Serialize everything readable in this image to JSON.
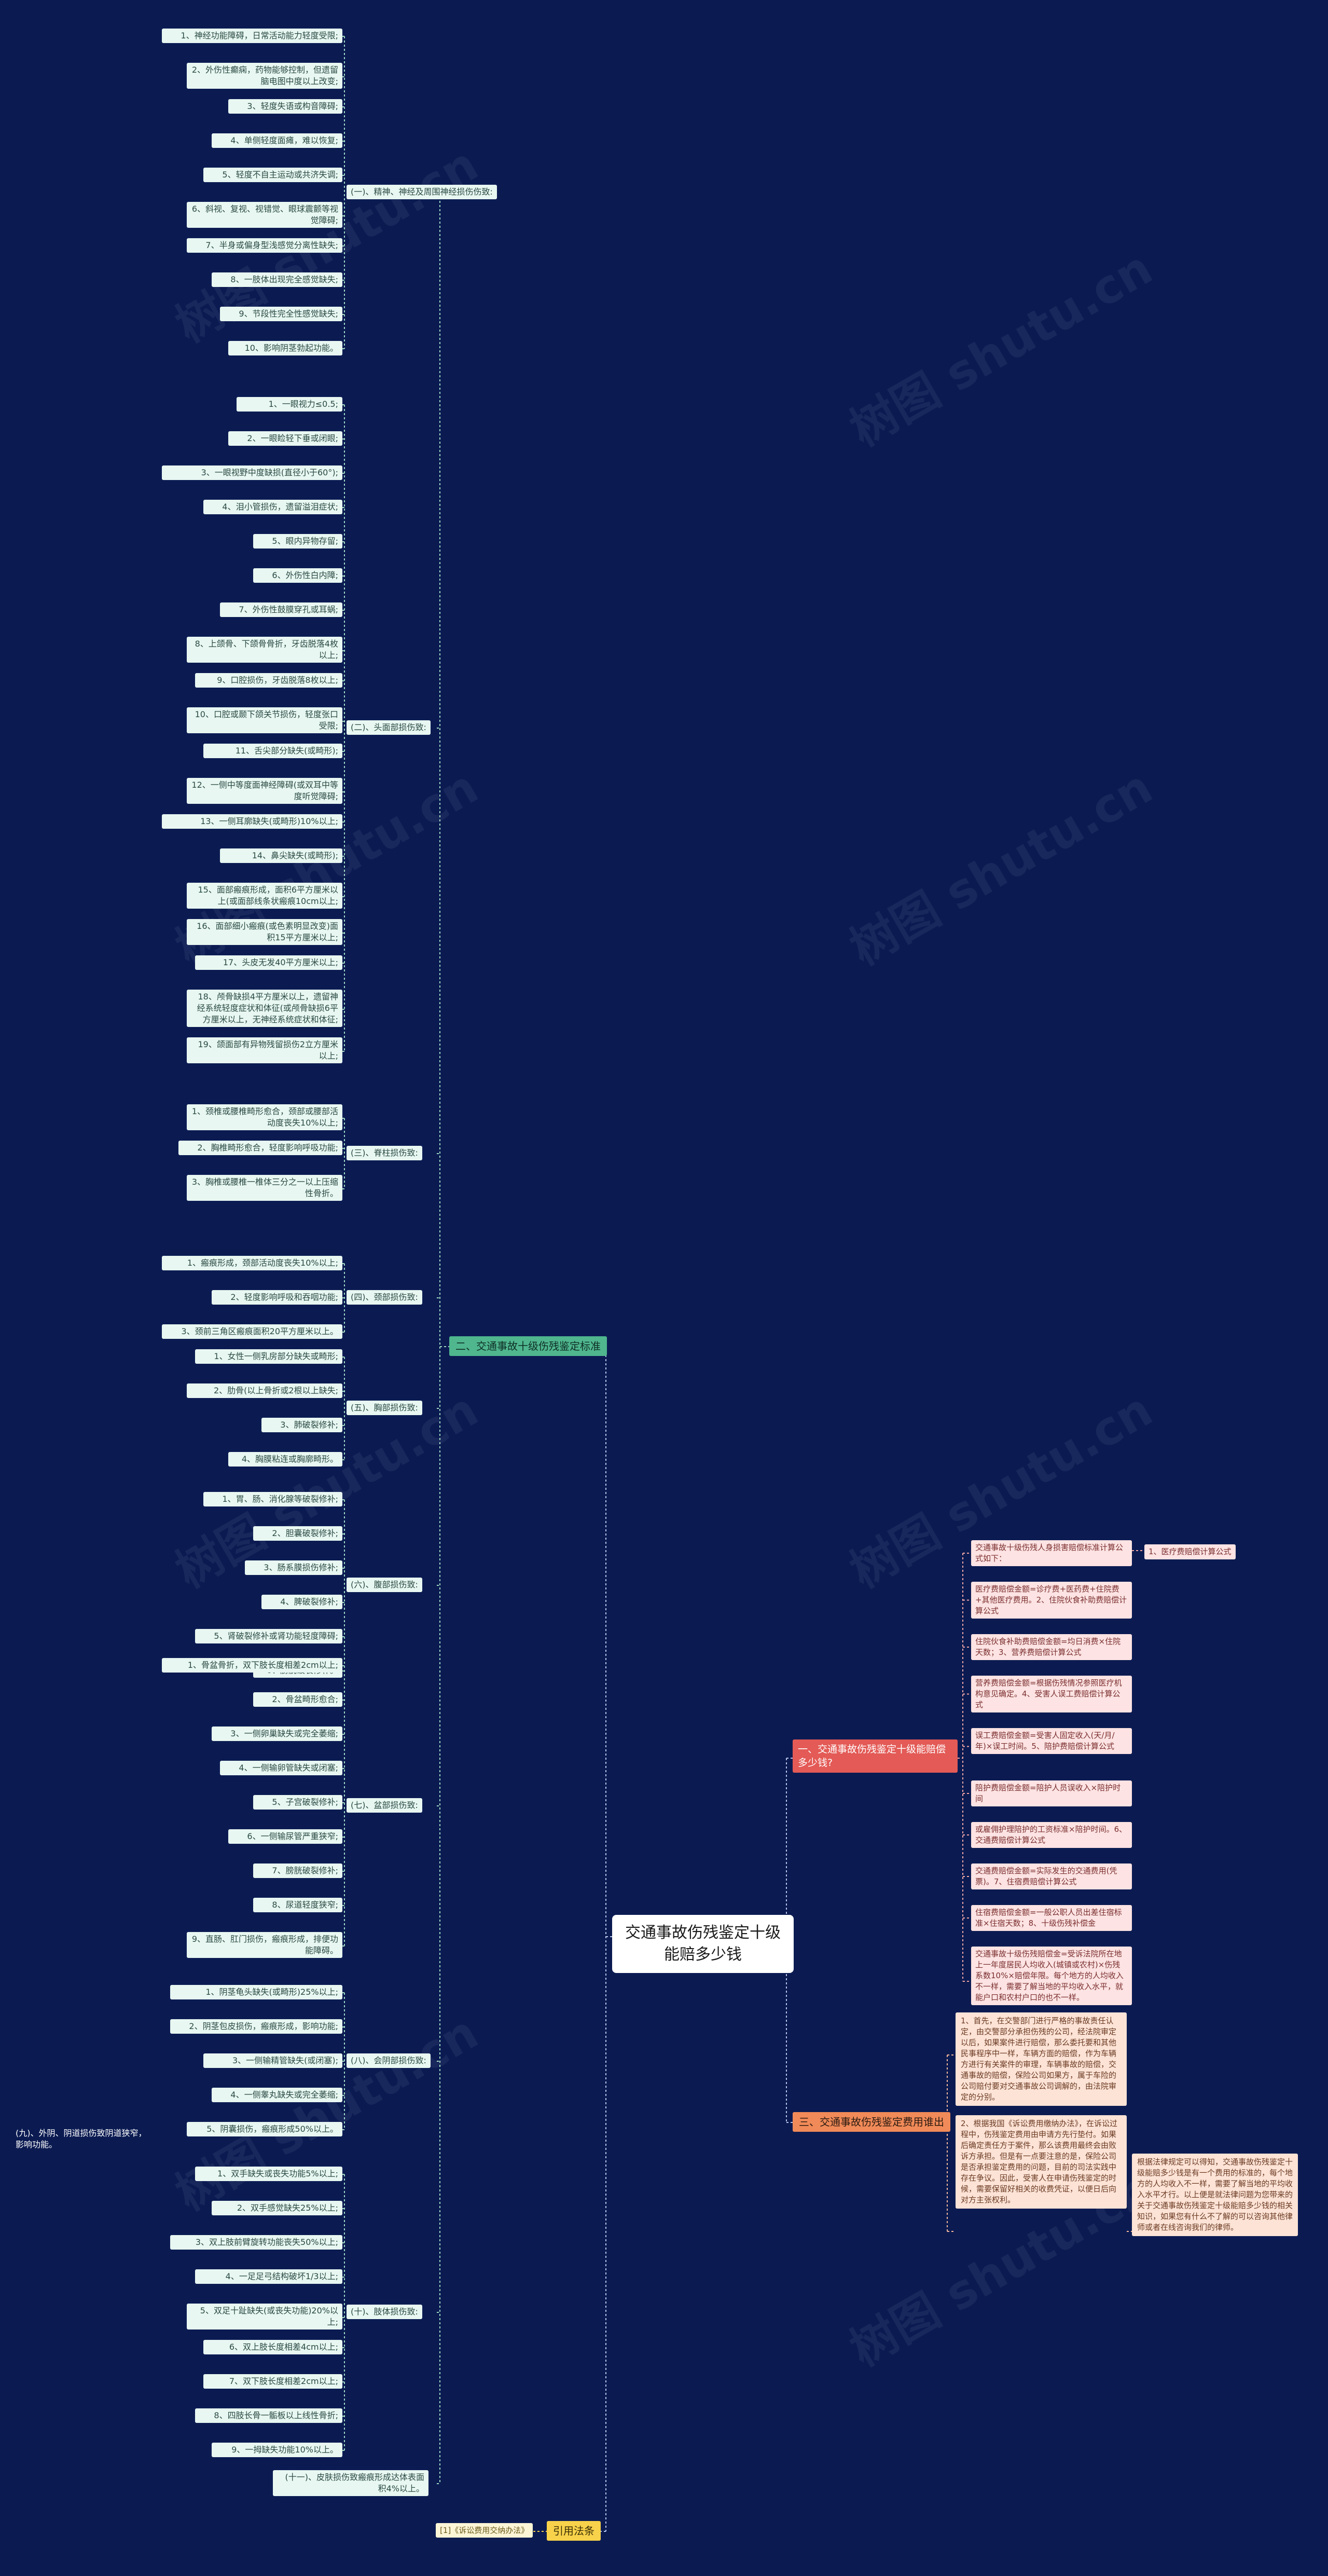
{
  "root": "交通事故伤残鉴定十级能赔多少钱",
  "branch_compensation": {
    "label": "一、交通事故伤残鉴定十级能赔偿多少钱?",
    "items": [
      {
        "text": "交通事故十级伤残人身损害赔偿标准计算公式如下：",
        "tag": "1、医疗费赔偿计算公式"
      },
      {
        "text": "医疗费赔偿金额=诊疗费+医药费+住院费+其他医疗费用。2、住院伙食补助费赔偿计算公式"
      },
      {
        "text": "住院伙食补助费赔偿金额=均日消费×住院天数；3、营养费赔偿计算公式"
      },
      {
        "text": "营养费赔偿金额=根据伤残情况参照医疗机构意见确定。4、受害人误工费赔偿计算公式"
      },
      {
        "text": "误工费赔偿金额=受害人固定收入(天/月/年)×误工时间。5、陪护费赔偿计算公式"
      },
      {
        "text": "陪护费赔偿金额=陪护人员误收入×陪护时间"
      },
      {
        "text": "或雇佣护理陪护的工资标准×陪护时间。6、交通费赔偿计算公式"
      },
      {
        "text": "交通费赔偿金额=实际发生的交通费用(凭票)。7、住宿费赔偿计算公式"
      },
      {
        "text": "住宿费赔偿金额=一般公职人员出差住宿标准×住宿天数；8、十级伤残补偿金"
      },
      {
        "text": "交通事故十级伤残赔偿金=受诉法院所在地上一年度居民人均收入(城镇或农村)×伤残系数10%×赔偿年限。每个地方的人均收入不一样，需要了解当地的平均收入水平，就能户口和农村户口的也不一样。"
      }
    ]
  },
  "branch_standard": {
    "label": "二、交通事故十级伤残鉴定标准",
    "groups": [
      {
        "label": "(一)、精神、神经及周围神经损伤伤致:",
        "items": [
          "1、神经功能障碍，日常活动能力轻度受限;",
          "2、外伤性癫痫，药物能够控制，但遗留脑电图中度以上改变;",
          "3、轻度失语或构音障碍;",
          "4、单侧轻度面瘫，难以恢复;",
          "5、轻度不自主运动或共济失调;",
          "6、斜视、复视、视错觉、眼球震颤等视觉障碍;",
          "7、半身或偏身型浅感觉分离性缺失;",
          "8、一肢体出现完全感觉缺失;",
          "9、节段性完全性感觉缺失;",
          "10、影响阴茎勃起功能。"
        ]
      },
      {
        "label": "(二)、头面部损伤致:",
        "items": [
          "1、一眼视力≤0.5;",
          "2、一眼睑轻下垂或闭眼;",
          "3、一眼视野中度缺损(直径小于60°);",
          "4、泪小管损伤，遗留溢泪症状;",
          "5、眼内异物存留;",
          "6、外伤性白内障;",
          "7、外伤性鼓膜穿孔或耳蜗;",
          "8、上颌骨、下颌骨骨折，牙齿脱落4枚以上;",
          "9、口腔损伤，牙齿脱落8枚以上;",
          "10、口腔或颞下颌关节损伤，轻度张口受限;",
          "11、舌尖部分缺失(或畸形);",
          "12、一侧中等度面神经障碍(或双耳中等度听觉障碍;",
          "13、一侧耳廓缺失(或畸形)10%以上;",
          "14、鼻尖缺失(或畸形);",
          "15、面部瘢痕形成，面积6平方厘米以上(或面部线条状瘢痕10cm以上;",
          "16、面部细小瘢痕(或色素明显改变)面积15平方厘米以上;",
          "17、头皮无发40平方厘米以上;",
          "18、颅骨缺损4平方厘米以上，遗留神经系统轻度症状和体征(或颅骨缺损6平方厘米以上，无神经系统症状和体征;",
          "19、颌面部有异物残留损伤2立方厘米以上;"
        ]
      },
      {
        "label": "(三)、脊柱损伤致:",
        "items": [
          "1、颈椎或腰椎畸形愈合，颈部或腰部活动度丧失10%以上;",
          "2、胸椎畸形愈合，轻度影响呼吸功能;",
          "3、胸椎或腰椎一椎体三分之一以上压缩性骨折。"
        ]
      },
      {
        "label": "(四)、颈部损伤致:",
        "items": [
          "1、瘢痕形成，颈部活动度丧失10%以上;",
          "2、轻度影响呼吸和吞咽功能;",
          "3、颈前三角区瘢痕面积20平方厘米以上。"
        ]
      },
      {
        "label": "(五)、胸部损伤致:",
        "items": [
          "1、女性一侧乳房部分缺失或畸形;",
          "2、肋骨(以上骨折或2根以上缺失;",
          "3、肺破裂修补;",
          "4、胸膜粘连或胸廓畸形。"
        ]
      },
      {
        "label": "(六)、腹部损伤致:",
        "items": [
          "1、胃、肠、消化腺等破裂修补;",
          "2、胆囊破裂修补;",
          "3、肠系膜损伤修补;",
          "4、脾破裂修补;",
          "5、肾破裂修补或肾功能轻度障碍;",
          "6、膀胱破裂修补。"
        ]
      },
      {
        "label": "(七)、盆部损伤致:",
        "items": [
          "1、骨盆骨折，双下肢长度相差2cm以上;",
          "2、骨盆畸形愈合;",
          "3、一侧卵巢缺失或完全萎缩;",
          "4、一侧输卵管缺失或闭塞;",
          "5、子宫破裂修补;",
          "6、一侧输尿管严重狭窄;",
          "7、膀胱破裂修补;",
          "8、尿道轻度狭窄;",
          "9、直肠、肛门损伤，瘢痕形成，排便功能障碍。"
        ]
      },
      {
        "label": "(八)、会阴部损伤致:",
        "items": [
          "1、阴茎龟头缺失(或畸形)25%以上;",
          "2、阴茎包皮损伤，瘢痕形成，影响功能;",
          "3、一侧输精管缺失(或闭塞);",
          "4、一侧睾丸缺失或完全萎缩;",
          "5、阴囊损伤，瘢痕形成50%以上。"
        ]
      },
      {
        "label": "(十)、肢体损伤致:",
        "items": [
          "1、双手缺失或丧失功能5%以上;",
          "2、双手感觉缺失25%以上;",
          "3、双上肢前臂旋转功能丧失50%以上;",
          "4、一足足弓结构破坏1/3以上;",
          "5、双足十趾缺失(或丧失功能)20%以上;",
          "6、双上肢长度相差4cm以上;",
          "7、双下肢长度相差2cm以上;",
          "8、四肢长骨一骺板以上线性骨折;",
          "9、一拇缺失功能10%以上。"
        ]
      }
    ],
    "side_note": "(九)、外阴、阴道损伤致阴道狭窄，影响功能。",
    "extra_group": "(十一)、皮肤损伤致瘢痕形成达体表面积4%以上。"
  },
  "branch_procedure": {
    "label": "三、交通事故伤残鉴定费用谁出",
    "items": [
      "1、首先，在交警部门进行严格的事故责任认定，由交警部分承担伤残的公司，经法院审定以后，如果案件进行赔偿，那么委托要和其他民事程序中一样，车辆方面的赔偿，作为车辆方进行有关案件的审理，车辆事故的赔偿，交通事故的赔偿，保险公司如果方，属于车险的公司赔付要对交通事故公司调解的，由法院审定的分别。",
      "2、根据我国《诉讼费用缴纳办法》，在诉讼过程中，伤残鉴定费用由申请方先行垫付。如果后确定责任方于案件，那么该费用最终会由败诉方承担。但是有一点要注意的是，保险公司是否承担鉴定费用的问题，目前的司法实践中存在争议。因此，受害人在申请伤残鉴定的时候，需要保留好相关的收费凭证，以便日后向对方主张权利。"
    ],
    "note": "根据法律规定可以得知，交通事故伤残鉴定十级能赔多少钱是有一个费用的标准的，每个地方的人均收入不一样，需要了解当地的平均收入水平才行。以上便是就法律问题为您带来的关于交通事故伤残鉴定十级能赔多少钱的相关知识，如果您有什么不了解的可以咨询其他律师或者在线咨询我们的律师。"
  },
  "branch_reference": {
    "label": "引用法条",
    "items": [
      "[1]《诉讼费用交纳办法》"
    ]
  },
  "watermark": "树图 shutu.cn"
}
